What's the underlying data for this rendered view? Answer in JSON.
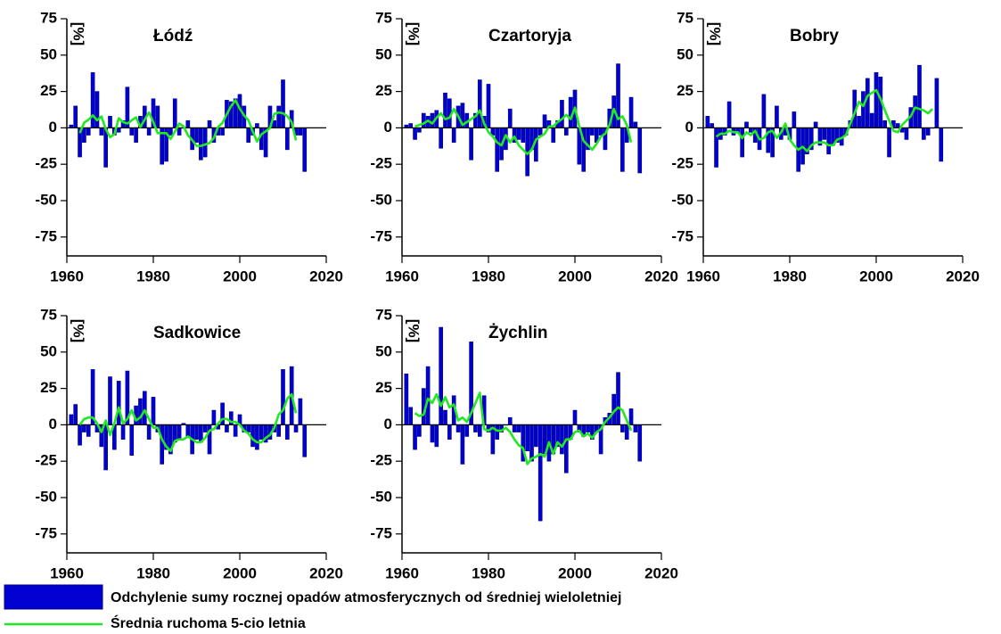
{
  "chart_data": [
    {
      "type": "bar",
      "title": "Łódź",
      "ylabel": "[%]",
      "x": [
        1961,
        1962,
        1963,
        1964,
        1965,
        1966,
        1967,
        1968,
        1969,
        1970,
        1971,
        1972,
        1973,
        1974,
        1975,
        1976,
        1977,
        1978,
        1979,
        1980,
        1981,
        1982,
        1983,
        1984,
        1985,
        1986,
        1987,
        1988,
        1989,
        1990,
        1991,
        1992,
        1993,
        1994,
        1995,
        1996,
        1997,
        1998,
        1999,
        2000,
        2001,
        2002,
        2003,
        2004,
        2005,
        2006,
        2007,
        2008,
        2009,
        2010,
        2011,
        2012,
        2013,
        2014,
        2015
      ],
      "series": [
        {
          "type": "bar",
          "color": "#0000d0",
          "values": [
            2,
            15,
            -20,
            -10,
            -5,
            38,
            25,
            -5,
            -27,
            8,
            -5,
            -3,
            5,
            28,
            -5,
            -10,
            8,
            15,
            -5,
            20,
            15,
            -25,
            -23,
            -5,
            20,
            -5,
            0,
            5,
            -15,
            -10,
            -22,
            -20,
            5,
            -10,
            -5,
            -5,
            19,
            18,
            20,
            23,
            15,
            -10,
            -5,
            3,
            -15,
            -20,
            15,
            5,
            15,
            33,
            -15,
            12,
            -5,
            -5,
            -30
          ]
        },
        {
          "type": "line",
          "color": "#22e822",
          "values": [
            null,
            null,
            -3.6,
            3.6,
            5.6,
            8.6,
            5.2,
            7.8,
            -0.8,
            -6.4,
            -4.4,
            6.6,
            4,
            3,
            5.2,
            7.2,
            0.6,
            5.6,
            10.6,
            4,
            -3.6,
            -3.6,
            -3.6,
            -7.6,
            -2.6,
            3,
            1,
            -5,
            -8.4,
            -12.4,
            -12.4,
            -11.4,
            -10.4,
            -7,
            0.8,
            3.4,
            9.4,
            15,
            19,
            13.2,
            8.6,
            5.2,
            -2.4,
            -9.4,
            -4.4,
            -2.4,
            0,
            9.6,
            10.6,
            10,
            8,
            4,
            -8.6,
            null,
            null
          ]
        }
      ],
      "xlim": [
        1960,
        2020
      ],
      "xticks": [
        1960,
        1980,
        2000,
        2020
      ],
      "ylim": [
        -88,
        75
      ],
      "yticks": [
        -75,
        -50,
        -25,
        0,
        25,
        50,
        75
      ]
    },
    {
      "type": "bar",
      "title": "Czartoryja",
      "ylabel": "[%]",
      "x": [
        1961,
        1962,
        1963,
        1964,
        1965,
        1966,
        1967,
        1968,
        1969,
        1970,
        1971,
        1972,
        1973,
        1974,
        1975,
        1976,
        1977,
        1978,
        1979,
        1980,
        1981,
        1982,
        1983,
        1984,
        1985,
        1986,
        1987,
        1988,
        1989,
        1990,
        1991,
        1992,
        1993,
        1994,
        1995,
        1996,
        1997,
        1998,
        1999,
        2000,
        2001,
        2002,
        2003,
        2004,
        2005,
        2006,
        2007,
        2008,
        2009,
        2010,
        2011,
        2012,
        2013,
        2014,
        2015
      ],
      "series": [
        {
          "type": "bar",
          "color": "#0000d0",
          "values": [
            2,
            3,
            -8,
            -3,
            10,
            8,
            10,
            12,
            -14,
            24,
            20,
            -10,
            15,
            17,
            10,
            -22,
            10,
            33,
            8,
            30,
            -5,
            -30,
            -22,
            -15,
            13,
            -10,
            -8,
            -10,
            -33,
            -15,
            -23,
            -5,
            9,
            5,
            -10,
            5,
            19,
            -5,
            21,
            26,
            -25,
            -30,
            -15,
            -5,
            -10,
            -5,
            -15,
            13,
            22,
            44,
            -30,
            -10,
            21,
            4,
            -31
          ]
        },
        {
          "type": "line",
          "color": "#22e822",
          "values": [
            null,
            null,
            1,
            2,
            3,
            5,
            3,
            7,
            10,
            6,
            7,
            13,
            8,
            2,
            4,
            6,
            8,
            12,
            3,
            -3,
            -6,
            -10,
            -12,
            -5,
            -10,
            -6,
            -12,
            -15,
            -18,
            -15,
            -8,
            -6,
            -4,
            1,
            1,
            4,
            6,
            9,
            6,
            14,
            1,
            -9,
            -12,
            -15,
            -11,
            -6,
            -4,
            2,
            13,
            6,
            8,
            2,
            -10,
            null,
            null
          ]
        }
      ],
      "xlim": [
        1960,
        2020
      ],
      "xticks": [
        1960,
        1980,
        2000,
        2020
      ],
      "ylim": [
        -88,
        75
      ],
      "yticks": [
        -75,
        -50,
        -25,
        0,
        25,
        50,
        75
      ]
    },
    {
      "type": "bar",
      "title": "Bobry",
      "ylabel": "[%]",
      "x": [
        1961,
        1962,
        1963,
        1964,
        1965,
        1966,
        1967,
        1968,
        1969,
        1970,
        1971,
        1972,
        1973,
        1974,
        1975,
        1976,
        1977,
        1978,
        1979,
        1980,
        1981,
        1982,
        1983,
        1984,
        1985,
        1986,
        1987,
        1988,
        1989,
        1990,
        1991,
        1992,
        1993,
        1994,
        1995,
        1996,
        1997,
        1998,
        1999,
        2000,
        2001,
        2002,
        2003,
        2004,
        2005,
        2006,
        2007,
        2008,
        2009,
        2010,
        2011,
        2012,
        2013,
        2014,
        2015
      ],
      "series": [
        {
          "type": "bar",
          "color": "#0000d0",
          "values": [
            8,
            3,
            -27,
            -8,
            -5,
            18,
            -5,
            -3,
            -20,
            4,
            -3,
            -10,
            -15,
            23,
            -17,
            -20,
            15,
            -8,
            -5,
            -8,
            11,
            -30,
            -25,
            -18,
            -15,
            4,
            -12,
            -8,
            -18,
            -12,
            -10,
            -12,
            -5,
            5,
            26,
            8,
            25,
            34,
            10,
            38,
            35,
            5,
            -20,
            5,
            3,
            -3,
            -8,
            14,
            22,
            43,
            -8,
            -5,
            0,
            34,
            -23
          ]
        },
        {
          "type": "line",
          "color": "#22e822",
          "values": [
            null,
            null,
            -6,
            -4,
            -4,
            -2,
            -3,
            -3,
            -7,
            -3,
            -5,
            -2,
            -8,
            -7,
            -3,
            -2,
            -7,
            -3,
            3,
            -8,
            -12,
            -15,
            -13,
            -16,
            -12,
            -10,
            -10,
            -10,
            -12,
            -12,
            -8,
            -7,
            -5,
            3,
            10,
            18,
            15,
            22,
            24,
            26,
            20,
            12,
            5,
            -2,
            -3,
            2,
            5,
            8,
            14,
            13,
            12,
            10,
            13,
            null,
            null
          ]
        }
      ],
      "xlim": [
        1960,
        2020
      ],
      "xticks": [
        1960,
        1980,
        2000,
        2020
      ],
      "ylim": [
        -88,
        75
      ],
      "yticks": [
        -75,
        -50,
        -25,
        0,
        25,
        50,
        75
      ]
    },
    {
      "type": "bar",
      "title": "Sadkowice",
      "ylabel": "[%]",
      "x": [
        1961,
        1962,
        1963,
        1964,
        1965,
        1966,
        1967,
        1968,
        1969,
        1970,
        1971,
        1972,
        1973,
        1974,
        1975,
        1976,
        1977,
        1978,
        1979,
        1980,
        1981,
        1982,
        1983,
        1984,
        1985,
        1986,
        1987,
        1988,
        1989,
        1990,
        1991,
        1992,
        1993,
        1994,
        1995,
        1996,
        1997,
        1998,
        1999,
        2000,
        2001,
        2002,
        2003,
        2004,
        2005,
        2006,
        2007,
        2008,
        2009,
        2010,
        2011,
        2012,
        2013,
        2014,
        2015
      ],
      "series": [
        {
          "type": "bar",
          "color": "#0000d0",
          "values": [
            7,
            14,
            -14,
            -5,
            -8,
            38,
            -5,
            -15,
            -31,
            33,
            -17,
            30,
            -10,
            37,
            -21,
            13,
            18,
            23,
            -10,
            19,
            -5,
            -27,
            -17,
            -20,
            -12,
            -10,
            1,
            -8,
            -20,
            -10,
            -12,
            -5,
            -20,
            10,
            -3,
            15,
            -5,
            9,
            -8,
            7,
            -5,
            -5,
            -15,
            -17,
            -10,
            -12,
            -10,
            -5,
            -8,
            38,
            -10,
            40,
            -5,
            18,
            -22
          ]
        },
        {
          "type": "line",
          "color": "#22e822",
          "values": [
            null,
            null,
            0,
            4,
            5,
            5,
            1,
            -5,
            3,
            -7,
            1,
            12,
            1,
            4,
            10,
            3,
            5,
            10,
            4,
            -2,
            -2,
            -10,
            -15,
            -18,
            -11,
            -10,
            -10,
            -8,
            -10,
            -12,
            -12,
            -9,
            -4,
            -3,
            1,
            4,
            4,
            2,
            2,
            0,
            -4,
            -6,
            -10,
            -12,
            -12,
            -9,
            -7,
            -2,
            7,
            10,
            18,
            21,
            8,
            null,
            null
          ]
        }
      ],
      "xlim": [
        1960,
        2020
      ],
      "xticks": [
        1960,
        1980,
        2000,
        2020
      ],
      "ylim": [
        -88,
        75
      ],
      "yticks": [
        -75,
        -50,
        -25,
        0,
        25,
        50,
        75
      ]
    },
    {
      "type": "bar",
      "title": "Żychlin",
      "ylabel": "[%]",
      "x": [
        1961,
        1962,
        1963,
        1964,
        1965,
        1966,
        1967,
        1968,
        1969,
        1970,
        1971,
        1972,
        1973,
        1974,
        1975,
        1976,
        1977,
        1978,
        1979,
        1980,
        1981,
        1982,
        1983,
        1984,
        1985,
        1986,
        1987,
        1988,
        1989,
        1990,
        1991,
        1992,
        1993,
        1994,
        1995,
        1996,
        1997,
        1998,
        1999,
        2000,
        2001,
        2002,
        2003,
        2004,
        2005,
        2006,
        2007,
        2008,
        2009,
        2010,
        2011,
        2012,
        2013,
        2014,
        2015
      ],
      "series": [
        {
          "type": "bar",
          "color": "#0000d0",
          "values": [
            35,
            12,
            -17,
            -8,
            25,
            40,
            -12,
            -15,
            67,
            10,
            -10,
            20,
            -5,
            -27,
            -8,
            57,
            -5,
            -8,
            20,
            -5,
            -20,
            -10,
            -5,
            0,
            5,
            -5,
            -5,
            -25,
            -18,
            -25,
            -15,
            -66,
            -20,
            -25,
            -20,
            -15,
            -20,
            -33,
            -10,
            10,
            -5,
            -8,
            -5,
            -10,
            -5,
            -20,
            5,
            8,
            21,
            36,
            -5,
            -10,
            11,
            -5,
            -25
          ]
        },
        {
          "type": "line",
          "color": "#22e822",
          "values": [
            null,
            null,
            8,
            6,
            7,
            18,
            15,
            21,
            13,
            19,
            12,
            14,
            3,
            5,
            2,
            8,
            15,
            22,
            -3,
            -4,
            -2,
            -4,
            -4,
            -2,
            -5,
            -10,
            -14,
            -16,
            -27,
            -23,
            -22,
            -20,
            -22,
            -12,
            -20,
            -12,
            -15,
            -10,
            -10,
            -5,
            -4,
            -8,
            -6,
            -9,
            -5,
            -3,
            2,
            5,
            9,
            12,
            10,
            3,
            -4,
            null,
            null
          ]
        }
      ],
      "xlim": [
        1960,
        2020
      ],
      "xticks": [
        1960,
        1980,
        2000,
        2020
      ],
      "ylim": [
        -88,
        75
      ],
      "yticks": [
        -75,
        -50,
        -25,
        0,
        25,
        50,
        75
      ]
    }
  ],
  "legend": [
    "Odchylenie sumy rocznej opadów atmosferycznych od średniej wieloletniej",
    "Średnia ruchoma 5-cio letnia"
  ]
}
